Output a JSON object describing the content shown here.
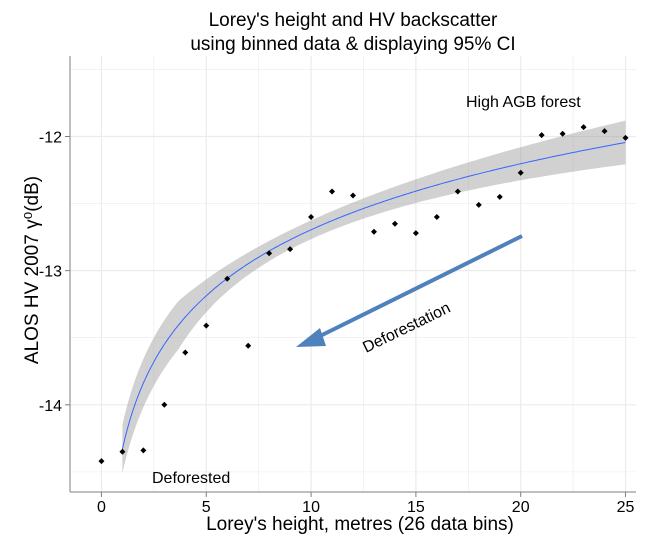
{
  "chart_data": {
    "type": "scatter",
    "title_line1": "Lorey's height and HV backscatter",
    "title_line2": "using binned data & displaying 95% CI",
    "xlabel": "Lorey's height, metres (26 data bins)",
    "ylabel": "ALOS HV 2007 γ⁰(dB)",
    "xlim": [
      -1.5,
      25.5
    ],
    "ylim": [
      -14.65,
      -11.4
    ],
    "x_ticks": [
      0,
      5,
      10,
      15,
      20,
      25
    ],
    "y_ticks": [
      -14,
      -13,
      -12
    ],
    "x_tick_labels": [
      "0",
      "5",
      "10",
      "15",
      "20",
      "25"
    ],
    "y_tick_labels": [
      "-14",
      "-13",
      "-12"
    ],
    "grid": true,
    "x": [
      0,
      1,
      2,
      3,
      4,
      5,
      6,
      7,
      8,
      9,
      10,
      11,
      12,
      13,
      14,
      15,
      16,
      17,
      18,
      19,
      20,
      21,
      22,
      23,
      24,
      25
    ],
    "y": [
      -14.42,
      -14.35,
      -14.34,
      -14.0,
      -13.61,
      -13.41,
      -13.06,
      -13.56,
      -12.87,
      -12.84,
      -12.6,
      -12.41,
      -12.44,
      -12.71,
      -12.65,
      -12.72,
      -12.6,
      -12.41,
      -12.51,
      -12.45,
      -12.27,
      -11.99,
      -11.98,
      -11.93,
      -11.96,
      -12.01
    ],
    "fit": {
      "x_start": 1,
      "x_end": 25,
      "intercept": -14.33,
      "slope_ln": 0.71,
      "ci_halfwidth_min": 0.07,
      "ci_halfwidth_max": 0.18
    },
    "annotations": {
      "high_label": "High AGB forest",
      "low_label": "Deforested",
      "arrow_label": "Deforestation"
    },
    "colors": {
      "points": "#000000",
      "fit_line": "#3366FF",
      "ci_band": "#999999",
      "arrow": "#4F81BD",
      "grid": "#EBEBEB",
      "axis": "#7F7F7F"
    }
  }
}
